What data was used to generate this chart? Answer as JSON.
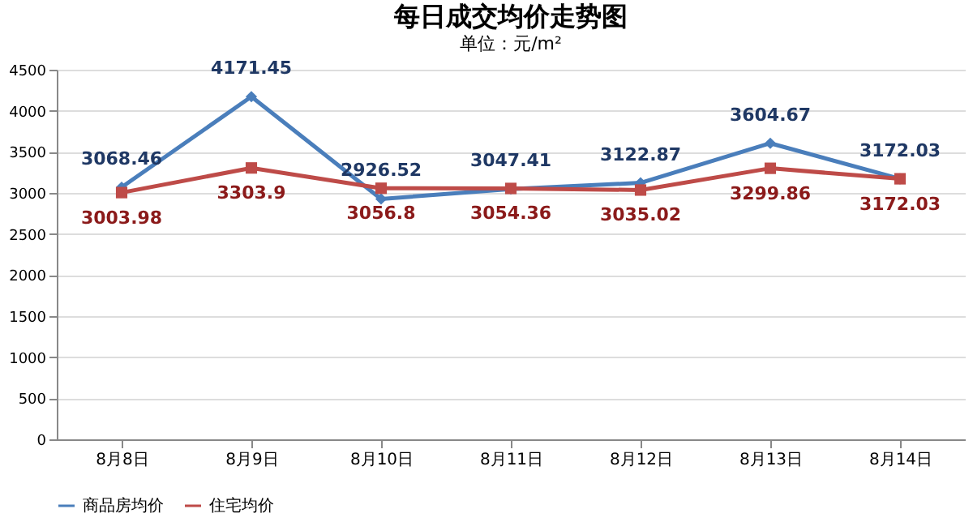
{
  "chart_data": {
    "type": "line",
    "title": "每日成交均价走势图",
    "subtitle": "单位：元/m²",
    "categories": [
      "8月8日",
      "8月9日",
      "8月10日",
      "8月11日",
      "8月12日",
      "8月13日",
      "8月14日"
    ],
    "series": [
      {
        "name": "商品房均价",
        "color": "#4a7ebb",
        "marker": "diamond",
        "values": [
          3068.46,
          4171.45,
          2926.52,
          3047.41,
          3122.87,
          3604.67,
          3172.03
        ]
      },
      {
        "name": "住宅均价",
        "color": "#be4b48",
        "marker": "square",
        "values": [
          3003.98,
          3303.9,
          3056.8,
          3054.36,
          3035.02,
          3299.86,
          3172.03
        ]
      }
    ],
    "ylim": [
      0,
      4500
    ],
    "yticks": [
      0,
      500,
      1000,
      1500,
      2000,
      2500,
      3000,
      3500,
      4000,
      4500
    ],
    "grid": "y",
    "legend": "bottom",
    "data_labels": true,
    "line_style": "solid"
  }
}
